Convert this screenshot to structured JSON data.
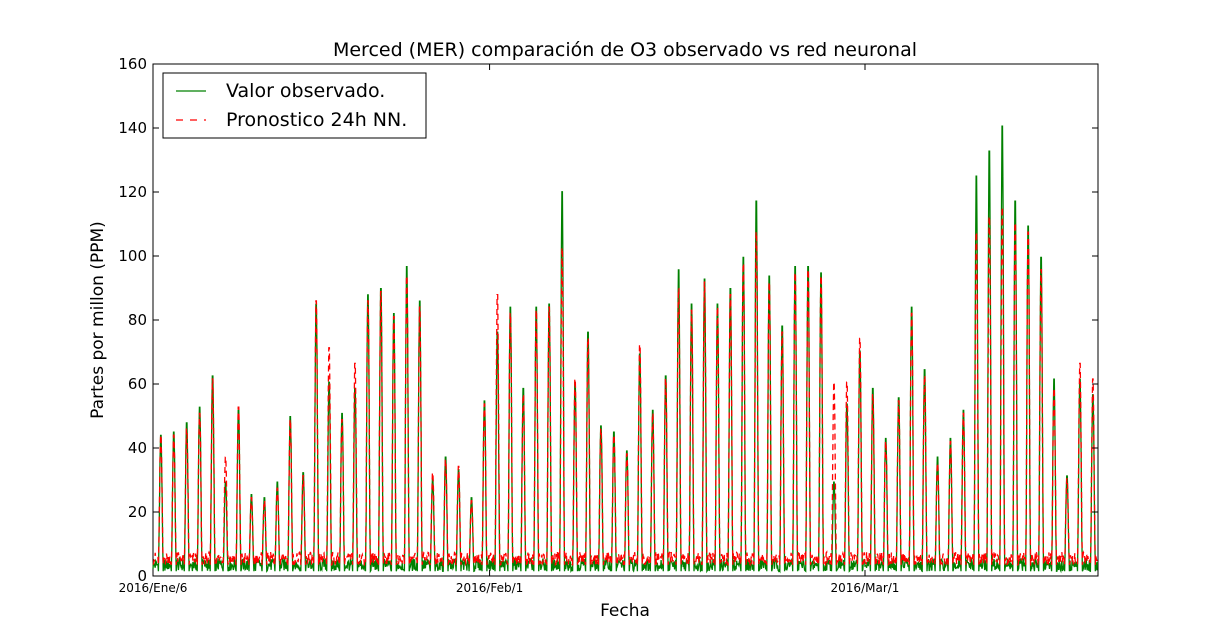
{
  "chart_data": {
    "type": "line",
    "title": "Merced (MER) comparación de O3 observado vs red neuronal",
    "xlabel": "Fecha",
    "ylabel": "Partes por millon (PPM)",
    "ylim": [
      0,
      160
    ],
    "yticks": [
      0,
      20,
      40,
      60,
      80,
      100,
      120,
      140,
      160
    ],
    "xlim_days": [
      0,
      73
    ],
    "xticks": [
      {
        "label": "2016/Ene/6",
        "day": 0
      },
      {
        "label": "2016/Feb/1",
        "day": 26
      },
      {
        "label": "2016/Mar/1",
        "day": 55
      }
    ],
    "legend_position": "top-left",
    "grid": false,
    "series": [
      {
        "name": "Valor observado.",
        "color": "#008000",
        "style": "solid",
        "daily_peaks": [
          45,
          46,
          49,
          54,
          64,
          30,
          53,
          26,
          25,
          30,
          51,
          33,
          87,
          62,
          52,
          60,
          90,
          92,
          84,
          99,
          88,
          31,
          38,
          34,
          25,
          56,
          78,
          86,
          60,
          86,
          87,
          123,
          62,
          78,
          48,
          46,
          40,
          71,
          53,
          64,
          98,
          87,
          95,
          87,
          92,
          102,
          120,
          96,
          80,
          99,
          99,
          97,
          30,
          55,
          72,
          60,
          44,
          57,
          86,
          66,
          38,
          44,
          53,
          128,
          136,
          144,
          120,
          112,
          102,
          63,
          32,
          63,
          58
        ]
      },
      {
        "name": "Pronostico 24h NN.",
        "color": "#ff0000",
        "style": "dashed",
        "daily_peaks": [
          45,
          45,
          47,
          52,
          63,
          38,
          54,
          25,
          24,
          28,
          50,
          32,
          88,
          73,
          50,
          68,
          88,
          91,
          83,
          96,
          86,
          33,
          37,
          35,
          24,
          55,
          90,
          84,
          58,
          85,
          86,
          105,
          63,
          76,
          47,
          45,
          39,
          74,
          52,
          63,
          92,
          85,
          94,
          86,
          90,
          100,
          110,
          94,
          78,
          97,
          98,
          96,
          62,
          62,
          76,
          58,
          43,
          56,
          84,
          64,
          36,
          43,
          52,
          110,
          115,
          118,
          113,
          110,
          98,
          60,
          31,
          68,
          63
        ]
      }
    ]
  }
}
